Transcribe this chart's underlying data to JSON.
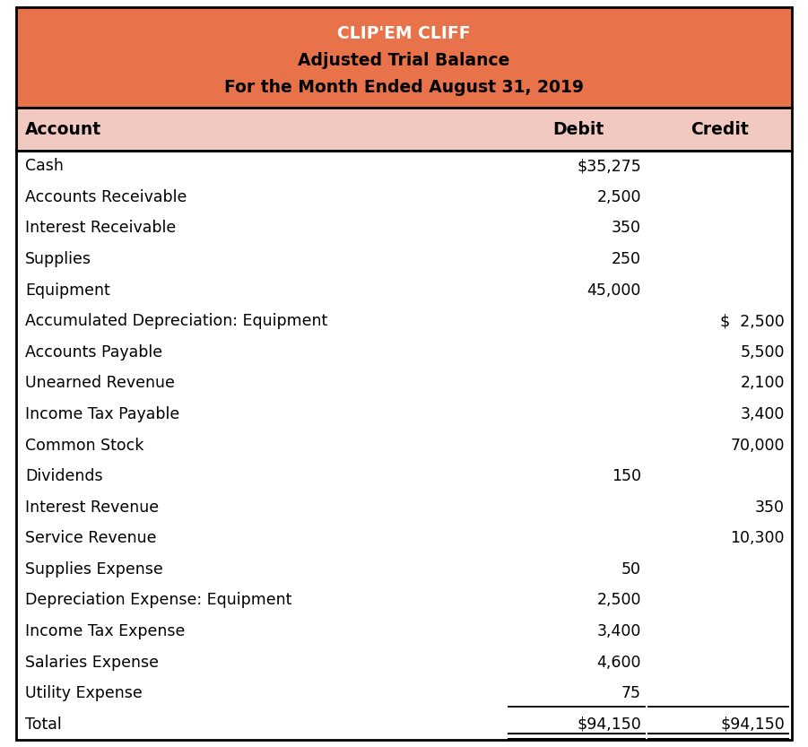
{
  "title_line1": "CLIP'EM CLIFF",
  "title_line2": "Adjusted Trial Balance",
  "title_line3": "For the Month Ended August 31, 2019",
  "header_bg": "#E8724A",
  "col_header_bg": "#F2C9C0",
  "body_bg": "#FFFFFF",
  "title_color1": "#FFFFFF",
  "title_color2": "#000000",
  "col_header_color": "#000000",
  "body_color": "#000000",
  "col_headers": [
    "Account",
    "Debit",
    "Credit"
  ],
  "rows": [
    {
      "account": "Cash",
      "debit": "$35,275",
      "credit": ""
    },
    {
      "account": "Accounts Receivable",
      "debit": "2,500",
      "credit": ""
    },
    {
      "account": "Interest Receivable",
      "debit": "350",
      "credit": ""
    },
    {
      "account": "Supplies",
      "debit": "250",
      "credit": ""
    },
    {
      "account": "Equipment",
      "debit": "45,000",
      "credit": ""
    },
    {
      "account": "Accumulated Depreciation: Equipment",
      "debit": "",
      "credit": "$  2,500"
    },
    {
      "account": "Accounts Payable",
      "debit": "",
      "credit": "5,500"
    },
    {
      "account": "Unearned Revenue",
      "debit": "",
      "credit": "2,100"
    },
    {
      "account": "Income Tax Payable",
      "debit": "",
      "credit": "3,400"
    },
    {
      "account": "Common Stock",
      "debit": "",
      "credit": "70,000"
    },
    {
      "account": "Dividends",
      "debit": "150",
      "credit": ""
    },
    {
      "account": "Interest Revenue",
      "debit": "",
      "credit": "350"
    },
    {
      "account": "Service Revenue",
      "debit": "",
      "credit": "10,300"
    },
    {
      "account": "Supplies Expense",
      "debit": "50",
      "credit": ""
    },
    {
      "account": "Depreciation Expense: Equipment",
      "debit": "2,500",
      "credit": ""
    },
    {
      "account": "Income Tax Expense",
      "debit": "3,400",
      "credit": ""
    },
    {
      "account": "Salaries Expense",
      "debit": "4,600",
      "credit": ""
    },
    {
      "account": "Utility Expense",
      "debit": "75",
      "credit": ""
    }
  ],
  "total_row": {
    "account": "Total",
    "debit": "$94,150",
    "credit": "$94,150"
  },
  "outer_border_color": "#000000",
  "fig_width": 9.01,
  "fig_height": 8.33,
  "dpi": 100
}
